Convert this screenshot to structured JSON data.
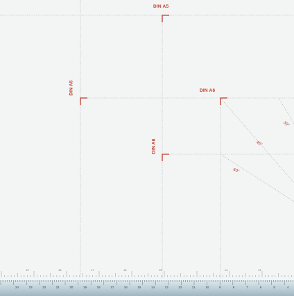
{
  "labels": {
    "din_a5_top": "DIN A5",
    "din_a5_side": "DIN A5",
    "din_a6_mid": "DIN A6",
    "din_a6_side": "DIN A6"
  },
  "angles": {
    "deg30": "30°",
    "deg45": "45°",
    "deg60": "60°"
  },
  "ruler": {
    "top_numbers": [
      "19",
      "18",
      "17",
      "16",
      "15",
      "14",
      "13"
    ],
    "bottom_numbers": [
      "24",
      "23",
      "22",
      "21",
      "20",
      "19",
      "18",
      "17",
      "16",
      "15",
      "14",
      "13",
      "12",
      "11",
      "10",
      "9",
      "8",
      "7",
      "6",
      "5",
      "4"
    ]
  },
  "colors": {
    "accent_red": "#c0392b",
    "guide_gray": "#a7b0b3",
    "mat_background": "#f3f4f4"
  }
}
